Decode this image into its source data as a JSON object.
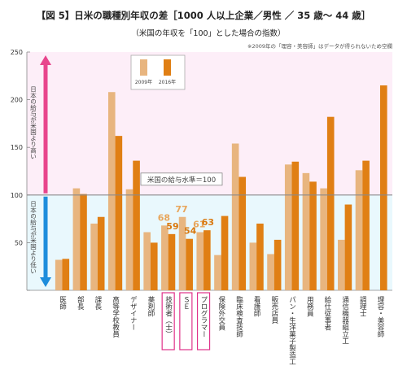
{
  "colors": {
    "bar_2009": "#e8b57f",
    "bar_2016": "#e07f14",
    "label_2009": "#e8a65c",
    "label_2016": "#d9780e",
    "band_high": "#fdeef8",
    "band_low": "#e9f8fd",
    "arrow_high": "#e8458c",
    "arrow_low": "#1d8ddc",
    "highlight_box": "#e0328a",
    "baseline": "#8a8a8a"
  },
  "chart_data": {
    "type": "bar",
    "title": "【図 5】日米の職種別年収の差［1000 人以上企業／男性 ／ 35 歳～ 44 歳］",
    "subtitle": "（米国の年収を「100」とした場合の指数）",
    "note": "※2009年の「理容・美容師」はデータが得られないため空欄",
    "ylim": [
      0,
      250
    ],
    "yticks": [
      0,
      50,
      100,
      150,
      200,
      250
    ],
    "grid": false,
    "legend_position": "top-left",
    "baseline_value": 100,
    "baseline_label": "米国の給与水準＝100",
    "arrow_high_label": "日本の給与が米国より高い",
    "arrow_low_label": "日本の給与が米国より低い",
    "categories": [
      "医師",
      "部長",
      "課長",
      "高等学校教員",
      "デザイナー",
      "薬剤師",
      "技術者（士）",
      "ＳＥ",
      "プログラマー",
      "保険外交員",
      "臨床検査技師",
      "看護師",
      "販売店員",
      "パン・生洋菓子製造工",
      "用務員",
      "給仕従事者",
      "通信機器組立工",
      "調理士",
      "理容・美容師"
    ],
    "highlighted": [
      "技術者（士）",
      "ＳＥ",
      "プログラマー"
    ],
    "series": [
      {
        "name": "2009年",
        "values": [
          32,
          107,
          70,
          208,
          106,
          61,
          68,
          77,
          61,
          37,
          154,
          50,
          38,
          132,
          123,
          107,
          53,
          126,
          null
        ]
      },
      {
        "name": "2016年",
        "values": [
          33,
          101,
          77,
          162,
          136,
          50,
          59,
          54,
          63,
          78,
          119,
          70,
          53,
          135,
          114,
          182,
          90,
          136,
          215
        ]
      }
    ],
    "data_labels": [
      {
        "category": "技術者（士）",
        "series": "2009年",
        "text": "68"
      },
      {
        "category": "技術者（士）",
        "series": "2016年",
        "text": "59"
      },
      {
        "category": "ＳＥ",
        "series": "2009年",
        "text": "77"
      },
      {
        "category": "ＳＥ",
        "series": "2016年",
        "text": "54"
      },
      {
        "category": "プログラマー",
        "series": "2009年",
        "text": "61"
      },
      {
        "category": "プログラマー",
        "series": "2016年",
        "text": "63"
      }
    ]
  }
}
